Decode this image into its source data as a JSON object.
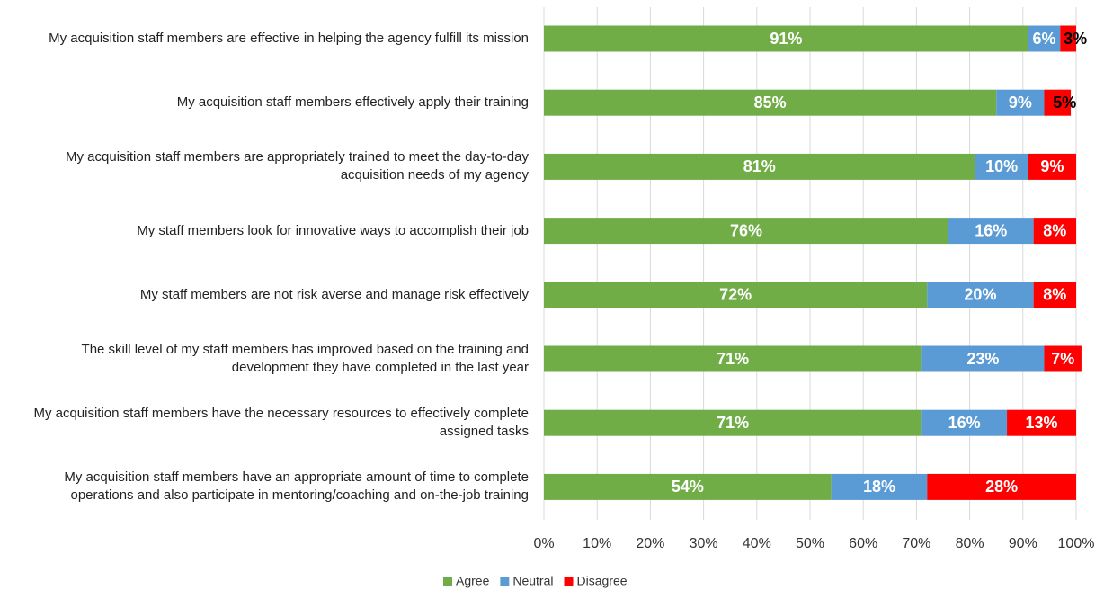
{
  "chart_data": {
    "type": "stacked-bar-horizontal",
    "categories": [
      "My acquisition staff members are effective in helping the agency fulfill its mission",
      "My acquisition staff members effectively apply their training",
      "My acquisition staff members are appropriately trained to meet the day-to-day acquisition needs of my agency",
      "My staff members look for innovative ways to accomplish their job",
      "My staff members are not risk averse and manage risk effectively",
      "The skill level of my staff members has improved based on the training and development they have completed in the last year",
      "My acquisition staff members have the necessary resources to effectively complete assigned tasks",
      "My acquisition staff members have an appropriate amount of time to complete operations and also participate in mentoring/coaching and on-the-job training"
    ],
    "series": [
      {
        "name": "Agree",
        "color": "#70ad47",
        "values": [
          91,
          85,
          81,
          76,
          72,
          71,
          71,
          54
        ],
        "value_labels": [
          "91%",
          "85%",
          "81%",
          "76%",
          "72%",
          "71%",
          "71%",
          "54%"
        ]
      },
      {
        "name": "Neutral",
        "color": "#5b9bd5",
        "values": [
          6,
          9,
          10,
          16,
          20,
          23,
          16,
          18
        ],
        "value_labels": [
          "6%",
          "9%",
          "10%",
          "16%",
          "20%",
          "23%",
          "16%",
          "18%"
        ]
      },
      {
        "name": "Disagree",
        "color": "#ff0000",
        "values": [
          3,
          5,
          9,
          8,
          8,
          7,
          13,
          28
        ],
        "value_labels": [
          "3%",
          "5%",
          "9%",
          "8%",
          "8%",
          "7%",
          "13%",
          "28%"
        ]
      }
    ],
    "xlim": [
      0,
      100
    ],
    "xticks": [
      {
        "value": 0,
        "label": "0%"
      },
      {
        "value": 10,
        "label": "10%"
      },
      {
        "value": 20,
        "label": "20%"
      },
      {
        "value": 30,
        "label": "30%"
      },
      {
        "value": 40,
        "label": "40%"
      },
      {
        "value": 50,
        "label": "50%"
      },
      {
        "value": 60,
        "label": "60%"
      },
      {
        "value": 70,
        "label": "70%"
      },
      {
        "value": 80,
        "label": "80%"
      },
      {
        "value": 90,
        "label": "90%"
      },
      {
        "value": 100,
        "label": "100%"
      }
    ],
    "grid": true,
    "legend": "bottom"
  }
}
